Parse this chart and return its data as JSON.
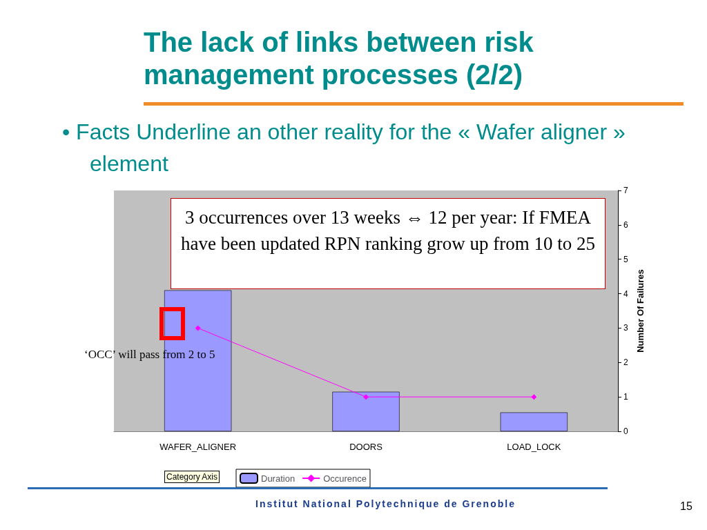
{
  "chart_data": {
    "type": "bar",
    "title": "The lack of links between risk management processes (2/2)",
    "subtitle": "• Facts Underline an other reality for the « Wafer aligner » element",
    "categories": [
      "WAFER_ALIGNER",
      "DOORS",
      "LOAD_LOCK"
    ],
    "series": [
      {
        "name": "Duration",
        "color": "#9999ff",
        "values": [
          4.1,
          1.15,
          0.55
        ]
      },
      {
        "name": "Occurence",
        "type": "line",
        "color": "#ff00ff",
        "values": [
          3,
          1,
          1
        ],
        "marker": "diamond"
      }
    ],
    "ylabel": "Number Of Failures",
    "ylim": [
      0,
      7
    ],
    "yticks": [
      0,
      1,
      2,
      3,
      4,
      5,
      6,
      7
    ],
    "legend": "bottom",
    "annotations": [
      "3 occurrences over 13 weeks ⇔ 12 per year: If FMEA have been updated RPN ranking grow up from 10 to 25",
      "‘OCC’ will pass from 2 to 5",
      "Category Axis",
      "Institut National Polytechnique de Grenoble",
      "15"
    ]
  }
}
